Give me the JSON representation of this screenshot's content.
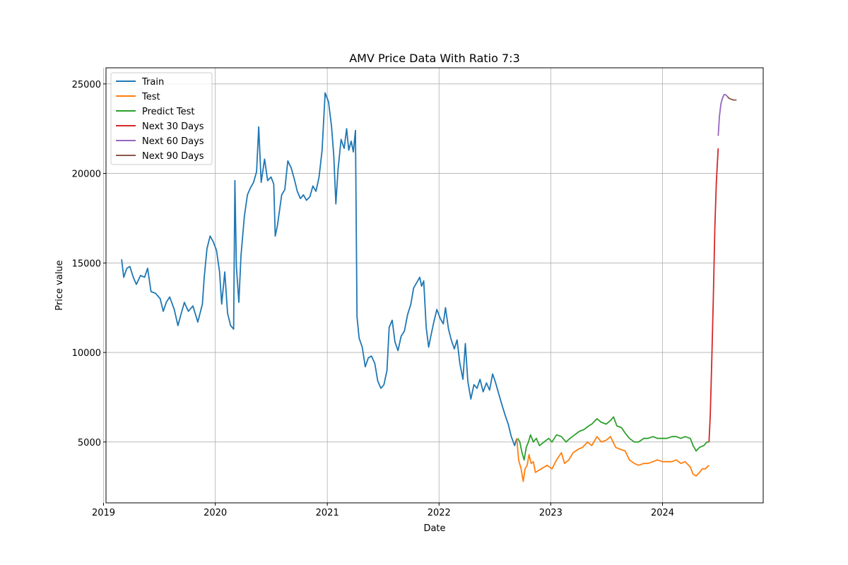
{
  "chart_data": {
    "type": "line",
    "title": "AMV Price Data With Ratio 7:3",
    "xlabel": "Date",
    "ylabel": "Price value",
    "xlim": [
      "2019-01-09",
      "2024-11-25"
    ],
    "ylim": [
      1600,
      25900
    ],
    "x_ticks": [
      "2019",
      "2020",
      "2021",
      "2022",
      "2023",
      "2024"
    ],
    "y_ticks": [
      5000,
      10000,
      15000,
      20000,
      25000
    ],
    "grid": true,
    "legend_position": "top-left",
    "series": [
      {
        "name": "Train",
        "color": "#1f77b4",
        "points": [
          [
            "2019-03-01",
            15200
          ],
          [
            "2019-03-08",
            14200
          ],
          [
            "2019-03-18",
            14700
          ],
          [
            "2019-03-28",
            14800
          ],
          [
            "2019-04-08",
            14200
          ],
          [
            "2019-04-18",
            13800
          ],
          [
            "2019-05-02",
            14300
          ],
          [
            "2019-05-15",
            14200
          ],
          [
            "2019-05-25",
            14700
          ],
          [
            "2019-06-05",
            13400
          ],
          [
            "2019-06-20",
            13300
          ],
          [
            "2019-07-05",
            13000
          ],
          [
            "2019-07-15",
            12300
          ],
          [
            "2019-07-25",
            12800
          ],
          [
            "2019-08-05",
            13100
          ],
          [
            "2019-08-20",
            12400
          ],
          [
            "2019-09-01",
            11500
          ],
          [
            "2019-09-12",
            12200
          ],
          [
            "2019-09-22",
            12800
          ],
          [
            "2019-10-05",
            12300
          ],
          [
            "2019-10-20",
            12600
          ],
          [
            "2019-11-05",
            11700
          ],
          [
            "2019-11-20",
            12700
          ],
          [
            "2019-11-26",
            14200
          ],
          [
            "2019-12-05",
            15800
          ],
          [
            "2019-12-15",
            16500
          ],
          [
            "2019-12-25",
            16200
          ],
          [
            "2020-01-05",
            15700
          ],
          [
            "2020-01-15",
            14500
          ],
          [
            "2020-01-22",
            12700
          ],
          [
            "2020-02-01",
            14500
          ],
          [
            "2020-02-10",
            12200
          ],
          [
            "2020-02-20",
            11500
          ],
          [
            "2020-03-01",
            11300
          ],
          [
            "2020-03-05",
            19600
          ],
          [
            "2020-03-10",
            14800
          ],
          [
            "2020-03-18",
            12800
          ],
          [
            "2020-03-25",
            15400
          ],
          [
            "2020-04-05",
            17600
          ],
          [
            "2020-04-15",
            18800
          ],
          [
            "2020-04-25",
            19200
          ],
          [
            "2020-05-05",
            19500
          ],
          [
            "2020-05-15",
            20100
          ],
          [
            "2020-05-22",
            22600
          ],
          [
            "2020-05-30",
            19500
          ],
          [
            "2020-06-10",
            20800
          ],
          [
            "2020-06-20",
            19600
          ],
          [
            "2020-07-01",
            19800
          ],
          [
            "2020-07-10",
            19400
          ],
          [
            "2020-07-15",
            16500
          ],
          [
            "2020-07-22",
            17100
          ],
          [
            "2020-08-05",
            18800
          ],
          [
            "2020-08-15",
            19100
          ],
          [
            "2020-08-25",
            20700
          ],
          [
            "2020-09-05",
            20300
          ],
          [
            "2020-09-15",
            19700
          ],
          [
            "2020-09-25",
            19000
          ],
          [
            "2020-10-05",
            18600
          ],
          [
            "2020-10-15",
            18800
          ],
          [
            "2020-10-25",
            18500
          ],
          [
            "2020-11-05",
            18700
          ],
          [
            "2020-11-15",
            19300
          ],
          [
            "2020-11-25",
            19000
          ],
          [
            "2020-12-05",
            19800
          ],
          [
            "2020-12-15",
            21300
          ],
          [
            "2020-12-25",
            24500
          ],
          [
            "2021-01-05",
            24000
          ],
          [
            "2021-01-15",
            22600
          ],
          [
            "2021-01-22",
            21000
          ],
          [
            "2021-01-29",
            18300
          ],
          [
            "2021-02-05",
            20200
          ],
          [
            "2021-02-15",
            21900
          ],
          [
            "2021-02-25",
            21400
          ],
          [
            "2021-03-05",
            22500
          ],
          [
            "2021-03-12",
            21300
          ],
          [
            "2021-03-20",
            21800
          ],
          [
            "2021-03-27",
            21200
          ],
          [
            "2021-04-03",
            22400
          ],
          [
            "2021-04-08",
            12000
          ],
          [
            "2021-04-15",
            10800
          ],
          [
            "2021-04-25",
            10300
          ],
          [
            "2021-05-05",
            9200
          ],
          [
            "2021-05-15",
            9700
          ],
          [
            "2021-05-25",
            9800
          ],
          [
            "2021-06-05",
            9400
          ],
          [
            "2021-06-15",
            8400
          ],
          [
            "2021-06-25",
            8000
          ],
          [
            "2021-07-05",
            8200
          ],
          [
            "2021-07-15",
            9000
          ],
          [
            "2021-07-22",
            11400
          ],
          [
            "2021-08-01",
            11800
          ],
          [
            "2021-08-10",
            10600
          ],
          [
            "2021-08-20",
            10100
          ],
          [
            "2021-08-30",
            10900
          ],
          [
            "2021-09-10",
            11200
          ],
          [
            "2021-09-20",
            12100
          ],
          [
            "2021-10-01",
            12700
          ],
          [
            "2021-10-10",
            13600
          ],
          [
            "2021-10-20",
            13900
          ],
          [
            "2021-10-30",
            14200
          ],
          [
            "2021-11-05",
            13700
          ],
          [
            "2021-11-12",
            14000
          ],
          [
            "2021-11-20",
            11400
          ],
          [
            "2021-11-28",
            10300
          ],
          [
            "2021-12-05",
            10900
          ],
          [
            "2021-12-15",
            11700
          ],
          [
            "2021-12-25",
            12400
          ],
          [
            "2022-01-05",
            11900
          ],
          [
            "2022-01-15",
            11600
          ],
          [
            "2022-01-22",
            12500
          ],
          [
            "2022-02-01",
            11300
          ],
          [
            "2022-02-10",
            10700
          ],
          [
            "2022-02-20",
            10200
          ],
          [
            "2022-03-01",
            10700
          ],
          [
            "2022-03-10",
            9400
          ],
          [
            "2022-03-20",
            8500
          ],
          [
            "2022-03-28",
            10500
          ],
          [
            "2022-04-05",
            8400
          ],
          [
            "2022-04-15",
            7400
          ],
          [
            "2022-04-25",
            8200
          ],
          [
            "2022-05-05",
            8000
          ],
          [
            "2022-05-15",
            8500
          ],
          [
            "2022-05-25",
            7800
          ],
          [
            "2022-06-05",
            8300
          ],
          [
            "2022-06-15",
            7900
          ],
          [
            "2022-06-25",
            8800
          ],
          [
            "2022-07-05",
            8300
          ],
          [
            "2022-07-15",
            7700
          ],
          [
            "2022-07-25",
            7100
          ],
          [
            "2022-08-05",
            6500
          ],
          [
            "2022-08-15",
            6000
          ],
          [
            "2022-08-25",
            5300
          ],
          [
            "2022-09-05",
            4800
          ],
          [
            "2022-09-12",
            5200
          ]
        ]
      },
      {
        "name": "Test",
        "color": "#ff7f0e",
        "points": [
          [
            "2022-09-12",
            5200
          ],
          [
            "2022-09-18",
            4000
          ],
          [
            "2022-09-26",
            3500
          ],
          [
            "2022-10-03",
            2800
          ],
          [
            "2022-10-09",
            3500
          ],
          [
            "2022-10-16",
            3700
          ],
          [
            "2022-10-22",
            4300
          ],
          [
            "2022-10-29",
            3800
          ],
          [
            "2022-11-05",
            3900
          ],
          [
            "2022-11-12",
            3300
          ],
          [
            "2022-12-01",
            3500
          ],
          [
            "2022-12-20",
            3700
          ],
          [
            "2023-01-05",
            3500
          ],
          [
            "2023-01-20",
            4000
          ],
          [
            "2023-02-05",
            4400
          ],
          [
            "2023-02-15",
            3800
          ],
          [
            "2023-03-01",
            4000
          ],
          [
            "2023-03-15",
            4400
          ],
          [
            "2023-04-01",
            4600
          ],
          [
            "2023-04-15",
            4700
          ],
          [
            "2023-05-01",
            5000
          ],
          [
            "2023-05-15",
            4800
          ],
          [
            "2023-06-01",
            5300
          ],
          [
            "2023-06-15",
            5000
          ],
          [
            "2023-07-01",
            5100
          ],
          [
            "2023-07-15",
            5300
          ],
          [
            "2023-08-01",
            4700
          ],
          [
            "2023-08-15",
            4600
          ],
          [
            "2023-09-01",
            4500
          ],
          [
            "2023-09-15",
            4000
          ],
          [
            "2023-10-01",
            3800
          ],
          [
            "2023-10-15",
            3700
          ],
          [
            "2023-11-01",
            3800
          ],
          [
            "2023-11-15",
            3800
          ],
          [
            "2023-12-01",
            3900
          ],
          [
            "2023-12-15",
            4000
          ],
          [
            "2024-01-01",
            3900
          ],
          [
            "2024-01-15",
            3900
          ],
          [
            "2024-02-01",
            3900
          ],
          [
            "2024-02-15",
            4000
          ],
          [
            "2024-03-01",
            3800
          ],
          [
            "2024-03-15",
            3900
          ],
          [
            "2024-04-01",
            3600
          ],
          [
            "2024-04-10",
            3200
          ],
          [
            "2024-04-20",
            3100
          ],
          [
            "2024-05-01",
            3300
          ],
          [
            "2024-05-10",
            3500
          ],
          [
            "2024-05-20",
            3500
          ],
          [
            "2024-06-01",
            3700
          ]
        ]
      },
      {
        "name": "Predict Test",
        "color": "#2ca02c",
        "points": [
          [
            "2022-09-15",
            5200
          ],
          [
            "2022-09-22",
            5000
          ],
          [
            "2022-09-29",
            4400
          ],
          [
            "2022-10-06",
            4000
          ],
          [
            "2022-10-13",
            4700
          ],
          [
            "2022-10-20",
            5000
          ],
          [
            "2022-10-27",
            5400
          ],
          [
            "2022-11-05",
            5000
          ],
          [
            "2022-11-15",
            5200
          ],
          [
            "2022-11-25",
            4800
          ],
          [
            "2022-12-10",
            5000
          ],
          [
            "2022-12-25",
            5200
          ],
          [
            "2023-01-05",
            5000
          ],
          [
            "2023-01-20",
            5400
          ],
          [
            "2023-02-05",
            5300
          ],
          [
            "2023-02-20",
            5000
          ],
          [
            "2023-03-05",
            5200
          ],
          [
            "2023-03-20",
            5400
          ],
          [
            "2023-04-05",
            5600
          ],
          [
            "2023-04-20",
            5700
          ],
          [
            "2023-05-05",
            5900
          ],
          [
            "2023-05-15",
            6000
          ],
          [
            "2023-06-01",
            6300
          ],
          [
            "2023-06-15",
            6100
          ],
          [
            "2023-07-01",
            6000
          ],
          [
            "2023-07-15",
            6200
          ],
          [
            "2023-07-25",
            6400
          ],
          [
            "2023-08-05",
            5900
          ],
          [
            "2023-08-20",
            5800
          ],
          [
            "2023-09-01",
            5500
          ],
          [
            "2023-09-15",
            5200
          ],
          [
            "2023-10-01",
            5000
          ],
          [
            "2023-10-15",
            5000
          ],
          [
            "2023-11-01",
            5200
          ],
          [
            "2023-11-15",
            5200
          ],
          [
            "2023-12-01",
            5300
          ],
          [
            "2023-12-15",
            5200
          ],
          [
            "2024-01-01",
            5200
          ],
          [
            "2024-01-15",
            5200
          ],
          [
            "2024-02-01",
            5300
          ],
          [
            "2024-02-15",
            5300
          ],
          [
            "2024-03-01",
            5200
          ],
          [
            "2024-03-15",
            5300
          ],
          [
            "2024-04-01",
            5200
          ],
          [
            "2024-04-10",
            4800
          ],
          [
            "2024-04-20",
            4500
          ],
          [
            "2024-05-01",
            4700
          ],
          [
            "2024-05-15",
            4800
          ],
          [
            "2024-05-25",
            5000
          ],
          [
            "2024-06-01",
            5000
          ]
        ]
      },
      {
        "name": "Next 30 Days",
        "color": "#d62728",
        "points": [
          [
            "2024-06-01",
            5000
          ],
          [
            "2024-06-05",
            6500
          ],
          [
            "2024-06-10",
            9500
          ],
          [
            "2024-06-15",
            13000
          ],
          [
            "2024-06-20",
            17000
          ],
          [
            "2024-06-25",
            19500
          ],
          [
            "2024-07-01",
            21400
          ]
        ]
      },
      {
        "name": "Next 60 Days",
        "color": "#9467bd",
        "points": [
          [
            "2024-07-01",
            22100
          ],
          [
            "2024-07-05",
            23200
          ],
          [
            "2024-07-10",
            23900
          ],
          [
            "2024-07-15",
            24200
          ],
          [
            "2024-07-20",
            24400
          ],
          [
            "2024-07-25",
            24400
          ],
          [
            "2024-07-31",
            24300
          ]
        ]
      },
      {
        "name": "Next 90 Days",
        "color": "#8c564b",
        "points": [
          [
            "2024-07-31",
            24300
          ],
          [
            "2024-08-05",
            24200
          ],
          [
            "2024-08-12",
            24150
          ],
          [
            "2024-08-20",
            24100
          ],
          [
            "2024-08-30",
            24100
          ]
        ]
      }
    ]
  }
}
